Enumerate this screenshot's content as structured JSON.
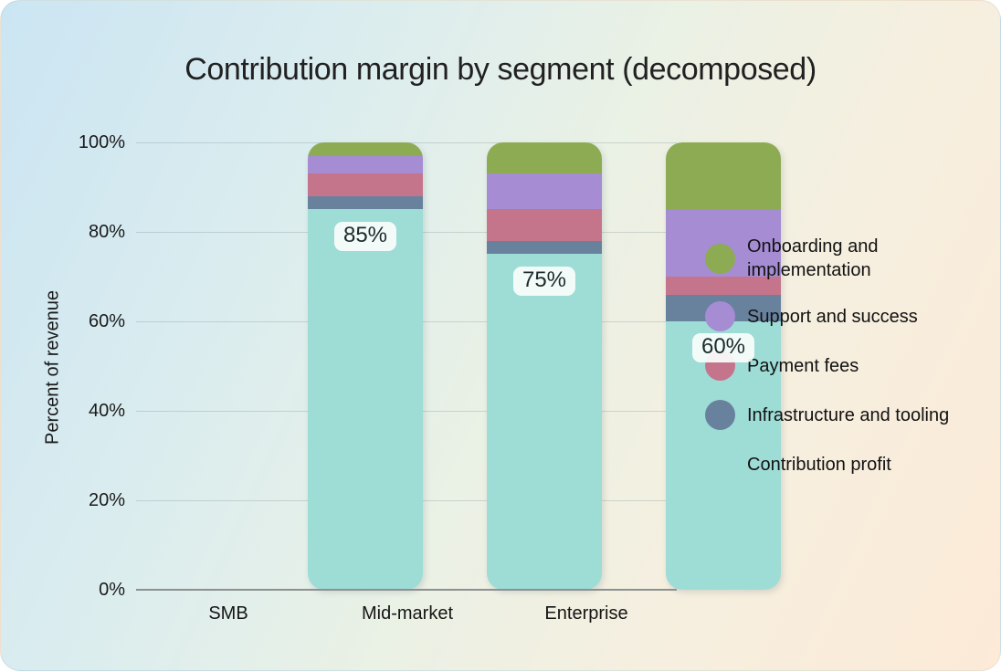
{
  "title": "Contribution margin by segment (decomposed)",
  "y_axis": {
    "label": "Percent of revenue",
    "ticks": [
      "100%",
      "80%",
      "60%",
      "40%",
      "20%",
      "0%"
    ]
  },
  "x_axis": {
    "categories": [
      "SMB",
      "Mid-market",
      "Enterprise"
    ]
  },
  "bar_value_labels": [
    "85%",
    "75%",
    "60%"
  ],
  "legend": {
    "items": [
      {
        "label": "Onboarding and\nimplementation",
        "color": "#8dab52"
      },
      {
        "label": "Support and success",
        "color": "#a58cd3"
      },
      {
        "label": "Payment fees",
        "color": "#c5758b"
      },
      {
        "label": "Infrastructure and tooling",
        "color": "#68829e"
      },
      {
        "label": "Contribution profit",
        "color": "#9edcd6"
      }
    ]
  },
  "chart_data": {
    "type": "bar",
    "stacked": true,
    "title": "Contribution margin by segment (decomposed)",
    "xlabel": "",
    "ylabel": "Percent of revenue",
    "ylim": [
      0,
      100
    ],
    "yticks_percent": [
      0,
      20,
      40,
      60,
      80,
      100
    ],
    "grid": "horizontal",
    "legend_position": "right",
    "categories": [
      "SMB",
      "Mid-market",
      "Enterprise"
    ],
    "series": [
      {
        "name": "Onboarding and implementation",
        "color": "#8dab52",
        "values": [
          3,
          7,
          15
        ]
      },
      {
        "name": "Support and success",
        "color": "#a58cd3",
        "values": [
          4,
          8,
          15
        ]
      },
      {
        "name": "Payment fees",
        "color": "#c5758b",
        "values": [
          5,
          7,
          4
        ]
      },
      {
        "name": "Infrastructure and tooling",
        "color": "#68829e",
        "values": [
          3,
          3,
          6
        ]
      },
      {
        "name": "Contribution profit",
        "color": "#9edcd6",
        "values": [
          85,
          75,
          60
        ]
      }
    ],
    "annotated_values": {
      "series": "Contribution profit",
      "labels": [
        "85%",
        "75%",
        "60%"
      ]
    }
  }
}
